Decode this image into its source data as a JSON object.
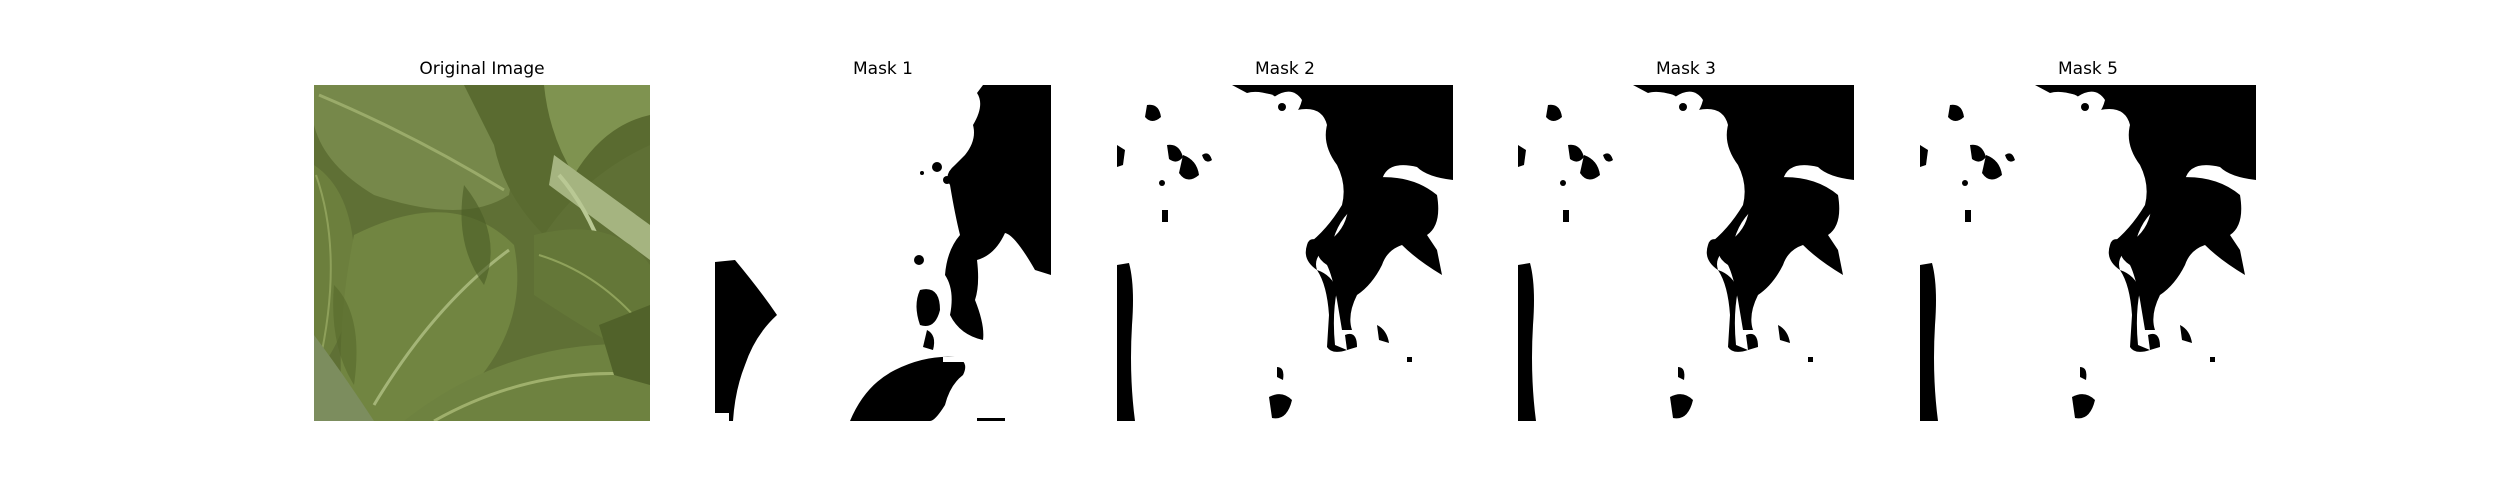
{
  "panels": [
    {
      "title": "Original Image",
      "kind": "photo"
    },
    {
      "title": "Mask 1",
      "kind": "mask",
      "variant": "mask1"
    },
    {
      "title": "Mask 2",
      "kind": "mask",
      "variant": "mask2"
    },
    {
      "title": "Mask 3",
      "kind": "mask",
      "variant": "mask2"
    },
    {
      "title": "Mask 5",
      "kind": "mask",
      "variant": "mask2"
    }
  ],
  "colors": {
    "background": "#ffffff",
    "mask_fg": "#ffffff",
    "mask_bg": "#000000",
    "leaf_dark": "#4a5b2c",
    "leaf_mid": "#6b7d3f",
    "leaf_light": "#8a9a5a"
  }
}
